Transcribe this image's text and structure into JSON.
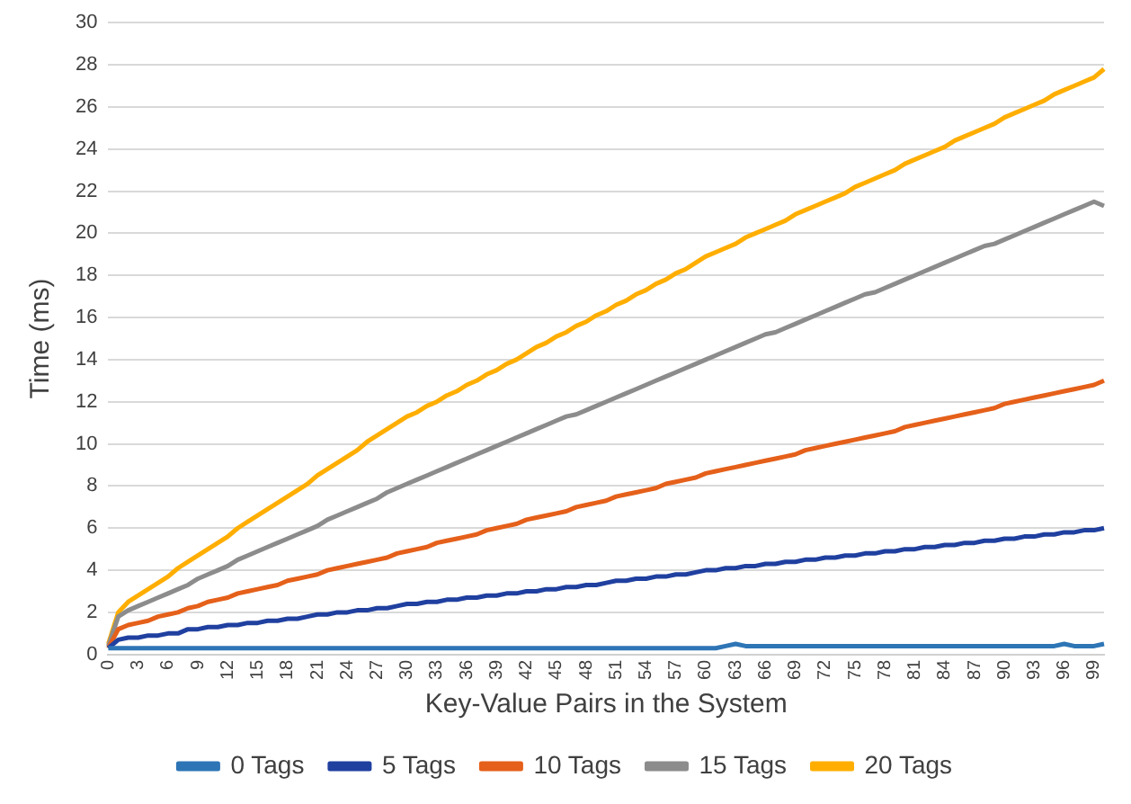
{
  "chart_data": {
    "type": "line",
    "xlabel": "Key-Value Pairs in the System",
    "ylabel": "Time (ms)",
    "categories": [
      "0",
      null,
      null,
      "3",
      null,
      null,
      "6",
      null,
      null,
      "9",
      null,
      null,
      "12",
      null,
      null,
      "15",
      null,
      null,
      "18",
      null,
      null,
      "21",
      null,
      null,
      "24",
      null,
      null,
      "27",
      null,
      null,
      "30",
      null,
      null,
      "33",
      null,
      null,
      "36",
      null,
      null,
      "39",
      null,
      null,
      "42",
      null,
      null,
      "45",
      null,
      null,
      "48",
      null,
      null,
      "51",
      null,
      null,
      "54",
      null,
      null,
      "57",
      null,
      null,
      "60",
      null,
      null,
      "63",
      null,
      null,
      "66",
      null,
      null,
      "69",
      null,
      null,
      "72",
      null,
      null,
      "75",
      null,
      null,
      "78",
      null,
      null,
      "81",
      null,
      null,
      "84",
      null,
      null,
      "87",
      null,
      null,
      "90",
      null,
      null,
      "93",
      null,
      null,
      "96",
      null,
      null,
      "99",
      null
    ],
    "ylim": [
      0,
      30
    ],
    "yticks": [
      0,
      2,
      4,
      6,
      8,
      10,
      12,
      14,
      16,
      18,
      20,
      22,
      24,
      26,
      28,
      30
    ],
    "grid": "y",
    "legend": "bottom",
    "marker": "none",
    "line_style": "solid",
    "series": [
      {
        "name": "0 Tags",
        "color": "#2e75b6",
        "values": [
          0.3,
          0.3,
          0.3,
          0.3,
          0.3,
          0.3,
          0.3,
          0.3,
          0.3,
          0.3,
          0.3,
          0.3,
          0.3,
          0.3,
          0.3,
          0.3,
          0.3,
          0.3,
          0.3,
          0.3,
          0.3,
          0.3,
          0.3,
          0.3,
          0.3,
          0.3,
          0.3,
          0.3,
          0.3,
          0.3,
          0.3,
          0.3,
          0.3,
          0.3,
          0.3,
          0.3,
          0.3,
          0.3,
          0.3,
          0.3,
          0.3,
          0.3,
          0.3,
          0.3,
          0.3,
          0.3,
          0.3,
          0.3,
          0.3,
          0.3,
          0.3,
          0.3,
          0.3,
          0.3,
          0.3,
          0.3,
          0.3,
          0.3,
          0.3,
          0.3,
          0.3,
          0.3,
          0.4,
          0.5,
          0.4,
          0.4,
          0.4,
          0.4,
          0.4,
          0.4,
          0.4,
          0.4,
          0.4,
          0.4,
          0.4,
          0.4,
          0.4,
          0.4,
          0.4,
          0.4,
          0.4,
          0.4,
          0.4,
          0.4,
          0.4,
          0.4,
          0.4,
          0.4,
          0.4,
          0.4,
          0.4,
          0.4,
          0.4,
          0.4,
          0.4,
          0.4,
          0.5,
          0.4,
          0.4,
          0.4,
          0.5
        ]
      },
      {
        "name": "5 Tags",
        "color": "#2040a0",
        "values": [
          0.3,
          0.7,
          0.8,
          0.8,
          0.9,
          0.9,
          1.0,
          1.0,
          1.2,
          1.2,
          1.3,
          1.3,
          1.4,
          1.4,
          1.5,
          1.5,
          1.6,
          1.6,
          1.7,
          1.7,
          1.8,
          1.9,
          1.9,
          2.0,
          2.0,
          2.1,
          2.1,
          2.2,
          2.2,
          2.3,
          2.4,
          2.4,
          2.5,
          2.5,
          2.6,
          2.6,
          2.7,
          2.7,
          2.8,
          2.8,
          2.9,
          2.9,
          3.0,
          3.0,
          3.1,
          3.1,
          3.2,
          3.2,
          3.3,
          3.3,
          3.4,
          3.5,
          3.5,
          3.6,
          3.6,
          3.7,
          3.7,
          3.8,
          3.8,
          3.9,
          4.0,
          4.0,
          4.1,
          4.1,
          4.2,
          4.2,
          4.3,
          4.3,
          4.4,
          4.4,
          4.5,
          4.5,
          4.6,
          4.6,
          4.7,
          4.7,
          4.8,
          4.8,
          4.9,
          4.9,
          5.0,
          5.0,
          5.1,
          5.1,
          5.2,
          5.2,
          5.3,
          5.3,
          5.4,
          5.4,
          5.5,
          5.5,
          5.6,
          5.6,
          5.7,
          5.7,
          5.8,
          5.8,
          5.9,
          5.9,
          6.0
        ]
      },
      {
        "name": "10 Tags",
        "color": "#e5601a",
        "values": [
          0.3,
          1.2,
          1.4,
          1.5,
          1.6,
          1.8,
          1.9,
          2.0,
          2.2,
          2.3,
          2.5,
          2.6,
          2.7,
          2.9,
          3.0,
          3.1,
          3.2,
          3.3,
          3.5,
          3.6,
          3.7,
          3.8,
          4.0,
          4.1,
          4.2,
          4.3,
          4.4,
          4.5,
          4.6,
          4.8,
          4.9,
          5.0,
          5.1,
          5.3,
          5.4,
          5.5,
          5.6,
          5.7,
          5.9,
          6.0,
          6.1,
          6.2,
          6.4,
          6.5,
          6.6,
          6.7,
          6.8,
          7.0,
          7.1,
          7.2,
          7.3,
          7.5,
          7.6,
          7.7,
          7.8,
          7.9,
          8.1,
          8.2,
          8.3,
          8.4,
          8.6,
          8.7,
          8.8,
          8.9,
          9.0,
          9.1,
          9.2,
          9.3,
          9.4,
          9.5,
          9.7,
          9.8,
          9.9,
          10.0,
          10.1,
          10.2,
          10.3,
          10.4,
          10.5,
          10.6,
          10.8,
          10.9,
          11.0,
          11.1,
          11.2,
          11.3,
          11.4,
          11.5,
          11.6,
          11.7,
          11.9,
          12.0,
          12.1,
          12.2,
          12.3,
          12.4,
          12.5,
          12.6,
          12.7,
          12.8,
          13.0
        ]
      },
      {
        "name": "15 Tags",
        "color": "#8c8c8c",
        "values": [
          0.4,
          1.8,
          2.1,
          2.3,
          2.5,
          2.7,
          2.9,
          3.1,
          3.3,
          3.6,
          3.8,
          4.0,
          4.2,
          4.5,
          4.7,
          4.9,
          5.1,
          5.3,
          5.5,
          5.7,
          5.9,
          6.1,
          6.4,
          6.6,
          6.8,
          7.0,
          7.2,
          7.4,
          7.7,
          7.9,
          8.1,
          8.3,
          8.5,
          8.7,
          8.9,
          9.1,
          9.3,
          9.5,
          9.7,
          9.9,
          10.1,
          10.3,
          10.5,
          10.7,
          10.9,
          11.1,
          11.3,
          11.4,
          11.6,
          11.8,
          12.0,
          12.2,
          12.4,
          12.6,
          12.8,
          13.0,
          13.2,
          13.4,
          13.6,
          13.8,
          14.0,
          14.2,
          14.4,
          14.6,
          14.8,
          15.0,
          15.2,
          15.3,
          15.5,
          15.7,
          15.9,
          16.1,
          16.3,
          16.5,
          16.7,
          16.9,
          17.1,
          17.2,
          17.4,
          17.6,
          17.8,
          18.0,
          18.2,
          18.4,
          18.6,
          18.8,
          19.0,
          19.2,
          19.4,
          19.5,
          19.7,
          19.9,
          20.1,
          20.3,
          20.5,
          20.7,
          20.9,
          21.1,
          21.3,
          21.5,
          21.3
        ]
      },
      {
        "name": "20 Tags",
        "color": "#ffae00",
        "values": [
          0.5,
          2.0,
          2.5,
          2.8,
          3.1,
          3.4,
          3.7,
          4.1,
          4.4,
          4.7,
          5.0,
          5.3,
          5.6,
          6.0,
          6.3,
          6.6,
          6.9,
          7.2,
          7.5,
          7.8,
          8.1,
          8.5,
          8.8,
          9.1,
          9.4,
          9.7,
          10.1,
          10.4,
          10.7,
          11.0,
          11.3,
          11.5,
          11.8,
          12.0,
          12.3,
          12.5,
          12.8,
          13.0,
          13.3,
          13.5,
          13.8,
          14.0,
          14.3,
          14.6,
          14.8,
          15.1,
          15.3,
          15.6,
          15.8,
          16.1,
          16.3,
          16.6,
          16.8,
          17.1,
          17.3,
          17.6,
          17.8,
          18.1,
          18.3,
          18.6,
          18.9,
          19.1,
          19.3,
          19.5,
          19.8,
          20.0,
          20.2,
          20.4,
          20.6,
          20.9,
          21.1,
          21.3,
          21.5,
          21.7,
          21.9,
          22.2,
          22.4,
          22.6,
          22.8,
          23.0,
          23.3,
          23.5,
          23.7,
          23.9,
          24.1,
          24.4,
          24.6,
          24.8,
          25.0,
          25.2,
          25.5,
          25.7,
          25.9,
          26.1,
          26.3,
          26.6,
          26.8,
          27.0,
          27.2,
          27.4,
          27.8
        ]
      }
    ]
  }
}
